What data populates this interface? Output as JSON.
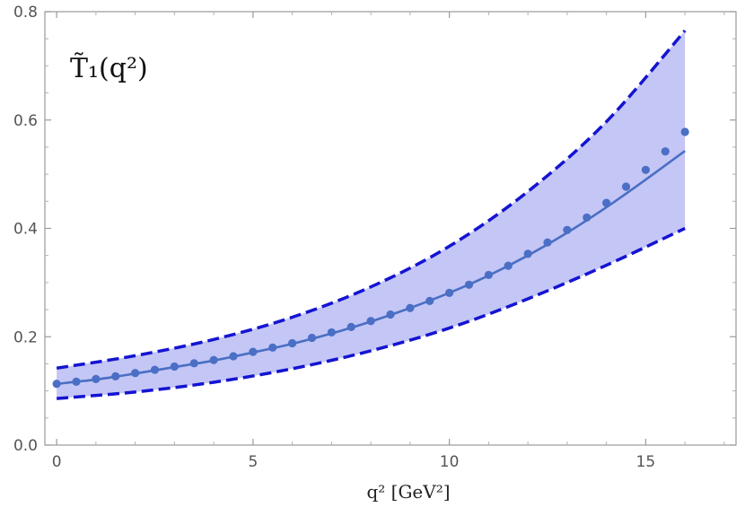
{
  "chart_data": {
    "type": "line",
    "title": "T̃₁(q²)",
    "xlabel": "q² [GeV²]",
    "ylabel": "",
    "xlim": [
      -0.3,
      17.3
    ],
    "ylim": [
      0.0,
      0.8
    ],
    "xticks": [
      0,
      5,
      10,
      15
    ],
    "yticks": [
      0.0,
      0.2,
      0.4,
      0.6,
      0.8
    ],
    "xtick_labels": [
      "0",
      "5",
      "10",
      "15"
    ],
    "ytick_labels": [
      "0.0",
      "0.2",
      "0.4",
      "0.6",
      "0.8"
    ],
    "grid": false,
    "legend": "none",
    "colors": {
      "band_fill": "#c4c6f6",
      "band_edge": "#1414d2",
      "central_line": "#4a6fc4",
      "points": "#4a6fc4"
    },
    "band": {
      "x": [
        0,
        2,
        4,
        6,
        8,
        10,
        12,
        14,
        16
      ],
      "upper": [
        0.142,
        0.165,
        0.195,
        0.236,
        0.292,
        0.367,
        0.468,
        0.597,
        0.765
      ],
      "lower": [
        0.086,
        0.098,
        0.116,
        0.141,
        0.174,
        0.216,
        0.27,
        0.332,
        0.4
      ]
    },
    "series": [
      {
        "style": "solid-line",
        "x": [
          0,
          1,
          2,
          3,
          4,
          5,
          6,
          7,
          8,
          9,
          10,
          11,
          12,
          13,
          14,
          15,
          16
        ],
        "y": [
          0.113,
          0.121,
          0.132,
          0.144,
          0.156,
          0.171,
          0.187,
          0.206,
          0.228,
          0.253,
          0.281,
          0.313,
          0.35,
          0.392,
          0.439,
          0.49,
          0.543
        ]
      },
      {
        "style": "points",
        "x": [
          0,
          0.5,
          1,
          1.5,
          2,
          2.5,
          3,
          3.5,
          4,
          4.5,
          5,
          5.5,
          6,
          6.5,
          7,
          7.5,
          8,
          8.5,
          9,
          9.5,
          10,
          10.5,
          11,
          11.5,
          12,
          12.5,
          13,
          13.5,
          14,
          14.5,
          15,
          15.5,
          16
        ],
        "y": [
          0.113,
          0.117,
          0.122,
          0.127,
          0.133,
          0.139,
          0.145,
          0.151,
          0.157,
          0.164,
          0.172,
          0.18,
          0.188,
          0.198,
          0.208,
          0.218,
          0.229,
          0.241,
          0.253,
          0.266,
          0.281,
          0.296,
          0.314,
          0.331,
          0.353,
          0.374,
          0.397,
          0.42,
          0.447,
          0.477,
          0.508,
          0.542,
          0.578
        ]
      }
    ]
  }
}
